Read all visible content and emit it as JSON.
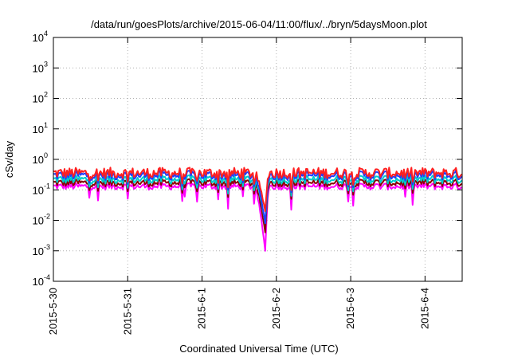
{
  "chart_data": {
    "type": "line",
    "title": "/data/run/goesPlots/archive/2015-06-04/11:00/flux/../bryn/5daysMoon.plot",
    "xlabel": "Coordinated Universal Time (UTC)",
    "ylabel": "cSv/day",
    "x_ticks": [
      "2015-5-30",
      "2015-5-31",
      "2015-6-1",
      "2015-6-2",
      "2015-6-3",
      "2015-6-4"
    ],
    "xlim_days": [
      0,
      5.5
    ],
    "y_scale": "log",
    "ylim": [
      0.0001,
      10000
    ],
    "y_ticks": [
      {
        "value": 0.0001,
        "mantissa": "10",
        "exp": "-4"
      },
      {
        "value": 0.001,
        "mantissa": "10",
        "exp": "-3"
      },
      {
        "value": 0.01,
        "mantissa": "10",
        "exp": "-2"
      },
      {
        "value": 0.1,
        "mantissa": "10",
        "exp": "-1"
      },
      {
        "value": 1,
        "mantissa": "10",
        "exp": "0"
      },
      {
        "value": 10,
        "mantissa": "10",
        "exp": "1"
      },
      {
        "value": 100,
        "mantissa": "10",
        "exp": "2"
      },
      {
        "value": 1000,
        "mantissa": "10",
        "exp": "3"
      },
      {
        "value": 10000,
        "mantissa": "10",
        "exp": "4"
      }
    ],
    "grid": true,
    "legend": "none",
    "series": [
      {
        "color": "#ff00ff",
        "base": 0.13,
        "dip_min": 0.001
      },
      {
        "color": "#8b0000",
        "base": 0.17,
        "dip_min": 0.004
      },
      {
        "color": "#00cccc",
        "base": 0.22,
        "dip_min": 0.008
      },
      {
        "color": "#1f3cff",
        "base": 0.3,
        "dip_min": 0.008
      },
      {
        "color": "#ff2020",
        "base": 0.36,
        "dip_min": 0.02
      }
    ],
    "dip_interval_days": [
      2.7,
      2.9
    ]
  }
}
